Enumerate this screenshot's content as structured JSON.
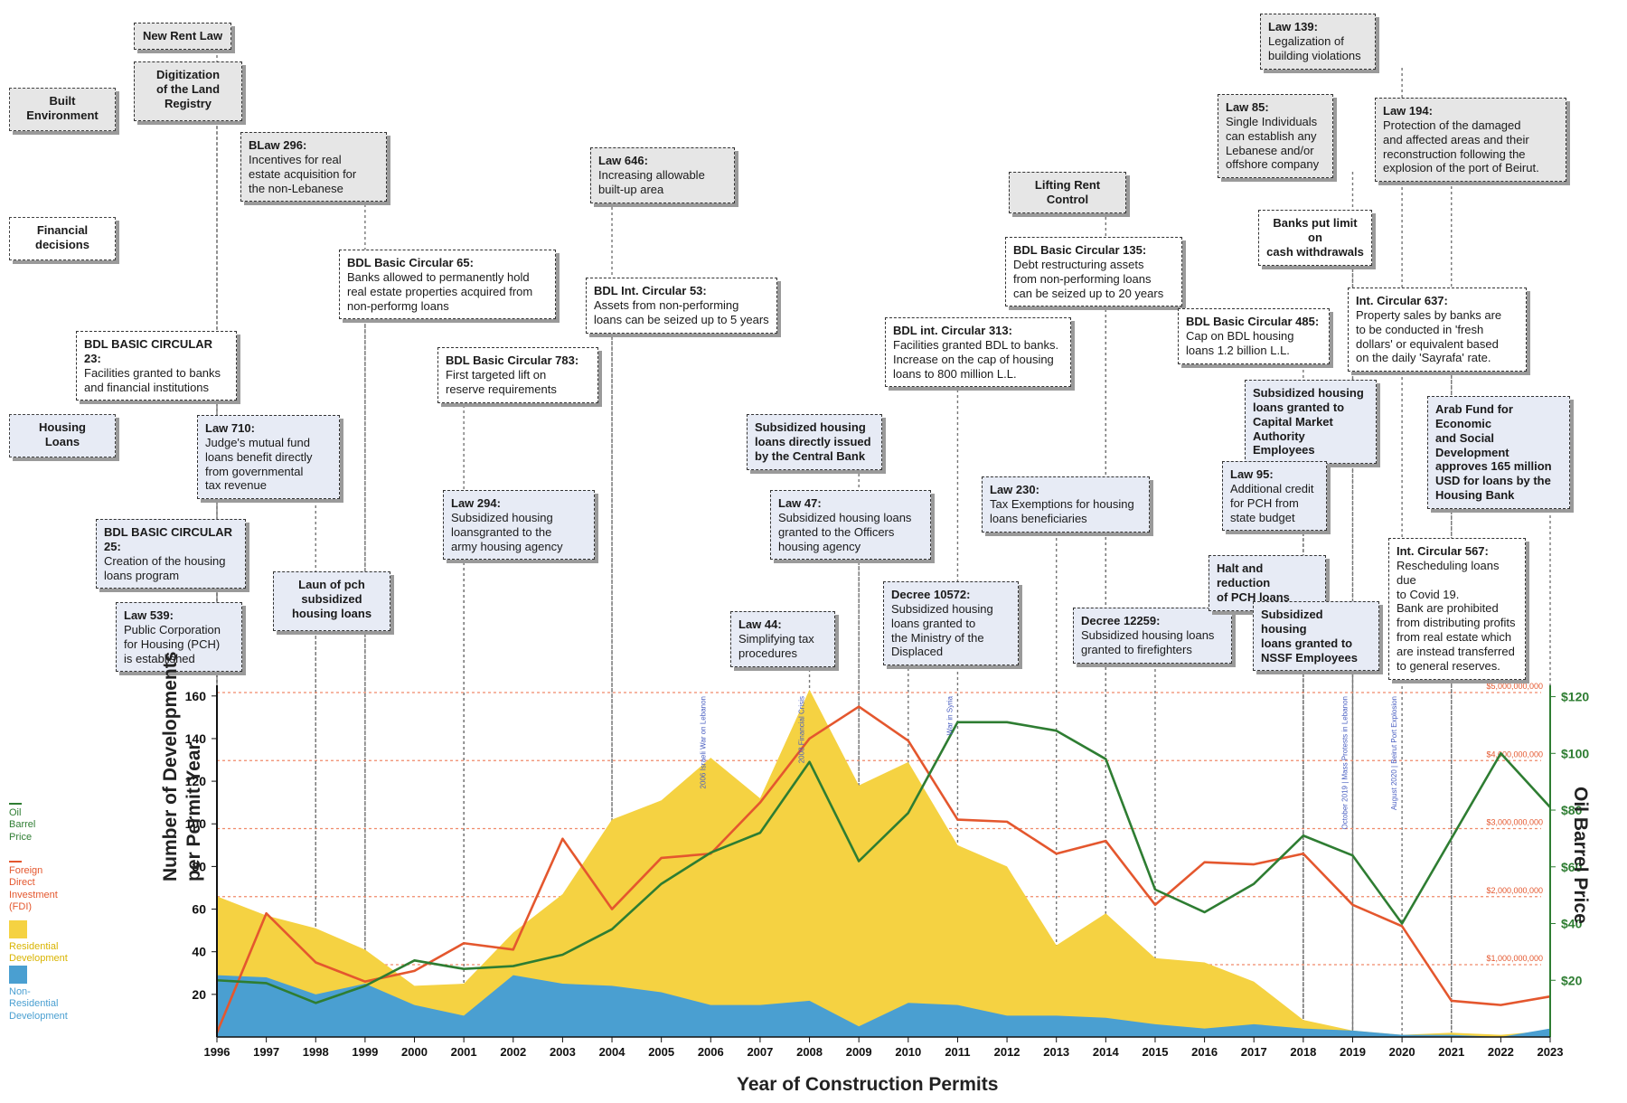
{
  "categories_side": [
    {
      "label": "Built\nEnvironment",
      "color": "gray"
    },
    {
      "label": "Financial\ndecisions",
      "color": "white"
    },
    {
      "label": "Housing\nLoans",
      "color": "blue"
    }
  ],
  "events": [
    {
      "id": "e1",
      "title": "New Rent Law",
      "desc": "",
      "color": "gray",
      "center": true
    },
    {
      "id": "e2",
      "title": "Digitization\nof the Land\nRegistry",
      "desc": "",
      "color": "gray",
      "center": true
    },
    {
      "id": "e3",
      "title": "BLaw 296:",
      "desc": "Incentives for real\nestate acquisition for\nthe non-Lebanese",
      "color": "gray"
    },
    {
      "id": "e4",
      "title": "BDL Basic Circular 65:",
      "desc": "Banks allowed to permanently hold\nreal estate properties acquired from\nnon-performg loans",
      "color": "white"
    },
    {
      "id": "e5",
      "title": "BDL BASIC CIRCULAR 23:",
      "desc": "Facilities granted to banks\nand financial institutions",
      "color": "white"
    },
    {
      "id": "e6",
      "title": "Law 710:",
      "desc": "Judge's mutual fund\nloans benefit directly\nfrom governmental\ntax revenue",
      "color": "blue"
    },
    {
      "id": "e7",
      "title": "BDL BASIC CIRCULAR 25:",
      "desc": "Creation of the housing\nloans program",
      "color": "blue"
    },
    {
      "id": "e8",
      "title": "Law 539:",
      "desc": "Public Corporation\nfor Housing (PCH)\nis established",
      "color": "blue"
    },
    {
      "id": "e9",
      "title": "Laun of pch\nsubsidized\nhousing loans",
      "desc": "",
      "color": "blue",
      "center": true
    },
    {
      "id": "e10",
      "title": "Law 646:",
      "desc": "Increasing allowable\nbuilt-up area",
      "color": "gray"
    },
    {
      "id": "e11",
      "title": "BDL Int. Circular 53:",
      "desc": "Assets from non-performing\nloans can be seized up to 5 years",
      "color": "white"
    },
    {
      "id": "e12",
      "title": "BDL Basic Circular 783:",
      "desc": "First targeted lift on\nreserve requirements",
      "color": "white"
    },
    {
      "id": "e13",
      "title": "Law 294:",
      "desc": "Subsidized housing\nloansgranted to the\narmy housing agency",
      "color": "blue"
    },
    {
      "id": "e14",
      "title": "Subsidized housing\nloans directly issued\nby the Central Bank",
      "desc": "",
      "color": "blue"
    },
    {
      "id": "e15",
      "title": "Law 47:",
      "desc": "Subsidized housing loans\ngranted to the Officers\nhousing agency",
      "color": "blue"
    },
    {
      "id": "e16",
      "title": "Law 44:",
      "desc": "Simplifying tax\nprocedures",
      "color": "blue"
    },
    {
      "id": "e17",
      "title": "BDL int. Circular 313:",
      "desc": "Facilities granted BDL to banks.\nIncrease on the cap of housing\nloans to 800 million L.L.",
      "color": "white"
    },
    {
      "id": "e18",
      "title": "Decree 10572:",
      "desc": "Subsidized housing\nloans granted to\nthe Ministry of the\nDisplaced",
      "color": "blue"
    },
    {
      "id": "e19",
      "title": "Lifting Rent Control",
      "desc": "",
      "color": "gray",
      "center": true
    },
    {
      "id": "e20",
      "title": "BDL Basic Circular 135:",
      "desc": "Debt restructuring assets\nfrom non-performing loans\ncan be seized up to 20 years",
      "color": "white"
    },
    {
      "id": "e21",
      "title": "Law 230:",
      "desc": "Tax Exemptions for housing\nloans beneficiaries",
      "color": "blue"
    },
    {
      "id": "e22",
      "title": "Decree 12259:",
      "desc": "Subsidized housing loans\ngranted to firefighters",
      "color": "blue"
    },
    {
      "id": "e23",
      "title": "Law 139:",
      "desc": "Legalization of\nbuilding violations",
      "color": "gray"
    },
    {
      "id": "e24",
      "title": "Law 85:",
      "desc": "Single Individuals\ncan establish any\nLebanese and/or\noffshore company",
      "color": "gray"
    },
    {
      "id": "e25",
      "title": "Banks put limit on\ncash withdrawals",
      "desc": "",
      "color": "white",
      "center": true
    },
    {
      "id": "e26",
      "title": "BDL Basic Circular 485:",
      "desc": "Cap on BDL housing\nloans 1.2 billion L.L.",
      "color": "white"
    },
    {
      "id": "e27",
      "title": "Subsidized housing\nloans granted to\nCapital Market\nAuthority Employees",
      "desc": "",
      "color": "blue"
    },
    {
      "id": "e28",
      "title": "Law 95:",
      "desc": "Additional credit\nfor PCH from\nstate budget",
      "color": "blue"
    },
    {
      "id": "e29",
      "title": "Halt and reduction\nof PCH loans",
      "desc": "",
      "color": "blue"
    },
    {
      "id": "e30",
      "title": "Subsidized housing\nloans granted to\nNSSF Employees",
      "desc": "",
      "color": "blue"
    },
    {
      "id": "e31",
      "title": "Law 194:",
      "desc": "Protection of the damaged\nand affected areas and their\nreconstruction following the\nexplosion of the port of Beirut.",
      "color": "gray"
    },
    {
      "id": "e32",
      "title": "Int. Circular 637:",
      "desc": "Property sales by banks are\nto be conducted in 'fresh\ndollars' or equivalent based\non the daily 'Sayrafa' rate.",
      "color": "white"
    },
    {
      "id": "e33",
      "title": "Arab Fund for Economic\nand Social Development\napproves 165 million\nUSD for loans by the\nHousing Bank",
      "desc": "",
      "color": "blue"
    },
    {
      "id": "e34",
      "title": "Int. Circular 567:",
      "desc": "Rescheduling loans due\nto Covid 19.\nBank are prohibited\nfrom distributing profits\nfrom real estate which\nare instead transferred\nto general reserves.",
      "color": "white"
    }
  ],
  "legend": [
    {
      "label": "Oil\nBarrel\nPrice",
      "color": "#2e7d32",
      "kind": "line"
    },
    {
      "label": "Foreign\nDirect\nInvestment\n(FDI)",
      "color": "#e4572e",
      "kind": "line"
    },
    {
      "label": "Residential\nDevelopment",
      "color": "#f5d242",
      "kind": "swatch"
    },
    {
      "label": "Non-\nResidential\nDevelopment",
      "color": "#4a9fd1",
      "kind": "swatch"
    }
  ],
  "chart_data": {
    "type": "area",
    "xlabel": "Year of Construction Permits",
    "ylabel": "Number of Developments\nper Permit Year",
    "y2label": "Oil Barrel Price",
    "x": [
      1996,
      1997,
      1998,
      1999,
      2000,
      2001,
      2002,
      2003,
      2004,
      2005,
      2006,
      2007,
      2008,
      2009,
      2010,
      2011,
      2012,
      2013,
      2014,
      2015,
      2016,
      2017,
      2018,
      2019,
      2020,
      2021,
      2022,
      2023
    ],
    "ylim": [
      0,
      165
    ],
    "yticks": [
      20,
      40,
      60,
      80,
      100,
      120,
      140,
      160
    ],
    "y2lim": [
      0,
      124
    ],
    "y2ticks": [
      "$20",
      "$40",
      "$60",
      "$80",
      "$100",
      "$120"
    ],
    "fdi_ticks": [
      "$5,000,000,000",
      "$4,000,000,000",
      "$3,000,000,000",
      "$2,000,000,000",
      "$1,000,000,000"
    ],
    "series": [
      {
        "name": "Residential Development",
        "kind": "area",
        "color": "#f5d242",
        "values": [
          66,
          57,
          51,
          41,
          24,
          25,
          49,
          67,
          102,
          111,
          131,
          112,
          163,
          118,
          129,
          90,
          80,
          43,
          58,
          37,
          35,
          26,
          8,
          3,
          1,
          2,
          1,
          3
        ]
      },
      {
        "name": "Non-Residential Development",
        "kind": "area",
        "color": "#4a9fd1",
        "values": [
          29,
          28,
          20,
          25,
          15,
          10,
          29,
          25,
          24,
          21,
          15,
          15,
          17,
          5,
          16,
          15,
          10,
          10,
          9,
          6,
          4,
          6,
          4,
          3,
          1,
          1,
          0,
          4
        ]
      },
      {
        "name": "Foreign Direct Investment (FDI)",
        "kind": "line",
        "color": "#e4572e",
        "values": [
          2,
          58,
          35,
          26,
          31,
          44,
          41,
          93,
          60,
          84,
          86,
          110,
          140,
          155,
          139,
          102,
          101,
          86,
          92,
          62,
          82,
          81,
          86,
          62,
          52,
          17,
          15,
          19
        ]
      },
      {
        "name": "Oil Barrel Price",
        "kind": "line",
        "color": "#2e7d32",
        "axis": "y2",
        "values": [
          20,
          19,
          12,
          18,
          27,
          24,
          25,
          29,
          38,
          54,
          65,
          72,
          97,
          62,
          79,
          111,
          111,
          108,
          98,
          52,
          44,
          54,
          71,
          64,
          40,
          70,
          100,
          81
        ]
      }
    ],
    "annotations": [
      {
        "year": 2006,
        "text": "2006 Israeli War on Lebanon"
      },
      {
        "year": 2008,
        "text": "2008 Financial Crisis"
      },
      {
        "year": 2011,
        "text": "War in Syria"
      },
      {
        "year": 2019,
        "text": "October 2019 | Mass Protests in Lebanon"
      },
      {
        "year": 2020,
        "text": "August 2020 | Beirut Port Explosion"
      }
    ]
  }
}
